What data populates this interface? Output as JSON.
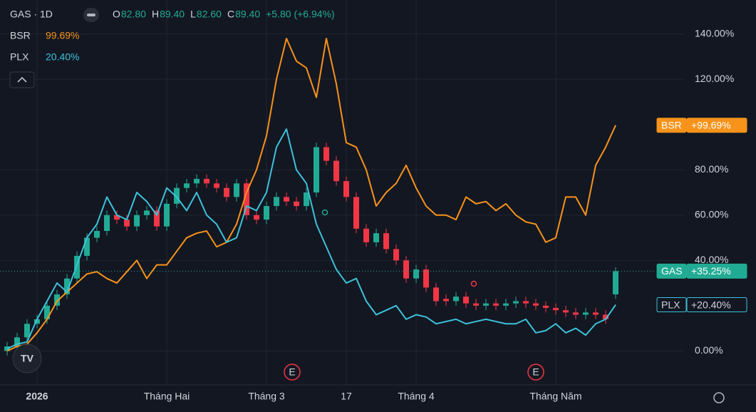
{
  "chart_data": {
    "type": "candlestick",
    "symbol_label": "GAS · 1D",
    "ohlc_legend": [
      {
        "label": "O",
        "value": "82.80"
      },
      {
        "label": "H",
        "value": "89.40"
      },
      {
        "label": "L",
        "value": "82.60"
      },
      {
        "label": "C",
        "value": "89.40"
      }
    ],
    "change_label": "+5.80 (+6.94%)",
    "name": "GAS",
    "last_label": "+35.25%",
    "color_up": "#22ab94",
    "color_down": "#f23645",
    "categories": [
      null,
      null,
      null,
      "2026",
      null,
      null,
      null,
      null,
      null,
      null,
      null,
      null,
      null,
      null,
      null,
      null,
      "Tháng Hai",
      null,
      null,
      null,
      null,
      null,
      null,
      null,
      null,
      null,
      "Tháng 3",
      null,
      null,
      null,
      null,
      null,
      null,
      null,
      "17",
      null,
      null,
      null,
      null,
      null,
      null,
      "Tháng 4",
      null,
      null,
      null,
      null,
      null,
      null,
      null,
      null,
      null,
      null,
      null,
      null,
      null,
      "Tháng Năm",
      null,
      null,
      null,
      null,
      null,
      null
    ],
    "open": [
      0,
      2,
      6,
      12,
      14,
      20,
      25,
      32,
      42,
      50,
      53,
      60,
      58,
      55,
      60,
      62,
      55,
      65,
      72,
      74,
      76,
      74,
      72,
      68,
      74,
      60,
      58,
      64,
      68,
      66,
      64,
      70,
      90,
      84,
      75,
      68,
      54,
      48,
      52,
      45,
      40,
      32,
      36,
      28,
      23,
      22,
      24,
      21,
      20,
      21,
      20,
      21,
      22,
      21,
      20,
      19,
      18,
      17,
      16,
      17,
      16,
      25
    ],
    "high": [
      4,
      8,
      14,
      16,
      22,
      27,
      34,
      44,
      52,
      55,
      62,
      62,
      60,
      62,
      64,
      64,
      67,
      74,
      76,
      78,
      78,
      76,
      74,
      76,
      76,
      62,
      66,
      70,
      70,
      68,
      72,
      92,
      92,
      86,
      77,
      70,
      56,
      54,
      54,
      47,
      42,
      38,
      38,
      30,
      25,
      26,
      26,
      23,
      23,
      23,
      23,
      24,
      24,
      23,
      22,
      21,
      20,
      19,
      19,
      19,
      18,
      37
    ],
    "low": [
      -2,
      0,
      4,
      10,
      12,
      18,
      23,
      30,
      40,
      48,
      51,
      56,
      53,
      53,
      58,
      53,
      53,
      63,
      70,
      72,
      72,
      70,
      66,
      66,
      58,
      56,
      56,
      62,
      64,
      62,
      62,
      68,
      82,
      73,
      66,
      52,
      46,
      46,
      43,
      38,
      30,
      30,
      26,
      20,
      20,
      20,
      19,
      18,
      18,
      18,
      18,
      19,
      19,
      18,
      17,
      16,
      15,
      14,
      14,
      14,
      12,
      23
    ],
    "close": [
      2,
      6,
      12,
      14,
      20,
      25,
      32,
      42,
      50,
      53,
      60,
      58,
      55,
      60,
      62,
      55,
      65,
      72,
      74,
      76,
      74,
      72,
      68,
      74,
      60,
      58,
      64,
      68,
      66,
      64,
      70,
      90,
      84,
      75,
      68,
      54,
      48,
      52,
      45,
      40,
      32,
      36,
      28,
      22,
      22,
      24,
      21,
      20,
      21,
      20,
      21,
      22,
      21,
      20,
      19,
      18,
      17,
      16,
      17,
      16,
      14,
      35.25
    ],
    "compare": [
      {
        "name": "BSR",
        "color": "#f7931a",
        "legend_value": "99.69%",
        "last_label": "+99.69%",
        "values": [
          0,
          2,
          3,
          8,
          14,
          22,
          26,
          30,
          34,
          35,
          32,
          30,
          35,
          40,
          32,
          38,
          38,
          44,
          50,
          52,
          53,
          46,
          48,
          56,
          70,
          80,
          95,
          120,
          138,
          128,
          125,
          112,
          138,
          118,
          92,
          90,
          80,
          64,
          70,
          74,
          82,
          72,
          64,
          60,
          60,
          58,
          68,
          65,
          66,
          62,
          65,
          60,
          57,
          56,
          48,
          50,
          68,
          68,
          60,
          82,
          90,
          99.69
        ]
      },
      {
        "name": "PLX",
        "color": "#3cc2db",
        "legend_value": "20.40%",
        "last_label": "+20.40%",
        "values": [
          1,
          3,
          4,
          14,
          22,
          30,
          26,
          38,
          50,
          56,
          68,
          60,
          58,
          70,
          66,
          60,
          72,
          68,
          62,
          70,
          60,
          56,
          48,
          50,
          64,
          62,
          70,
          90,
          98,
          80,
          74,
          56,
          46,
          36,
          30,
          32,
          22,
          16,
          18,
          20,
          14,
          16,
          15,
          12,
          13,
          14,
          12,
          13,
          14,
          13,
          12,
          12,
          14,
          8,
          9,
          12,
          8,
          10,
          7,
          12,
          14,
          20.4
        ]
      }
    ],
    "ylim": [
      -15,
      155
    ],
    "yticks": [
      {
        "value": 0,
        "label": "0.00%"
      },
      {
        "value": 40,
        "label": "40.00%"
      },
      {
        "value": 60,
        "label": "60.00%"
      },
      {
        "value": 80,
        "label": "80.00%"
      },
      {
        "value": 120,
        "label": "120.00%"
      },
      {
        "value": 140,
        "label": "140.00%"
      }
    ],
    "grid": true
  }
}
